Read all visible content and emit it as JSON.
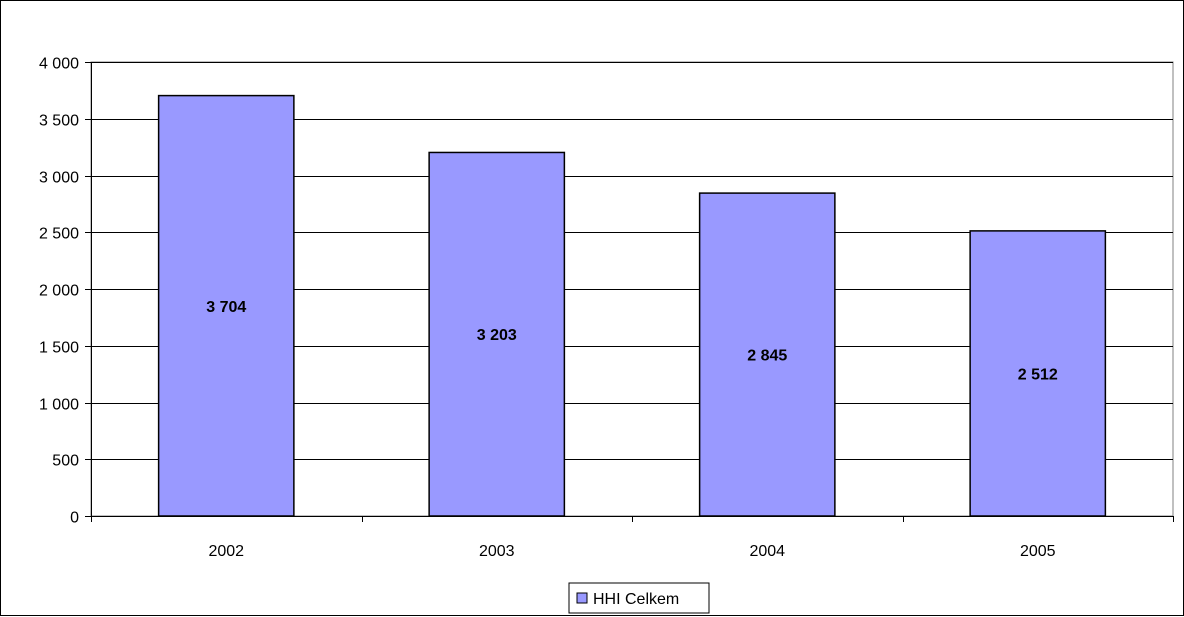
{
  "chart_data": {
    "type": "bar",
    "categories": [
      "2002",
      "2003",
      "2004",
      "2005"
    ],
    "series": [
      {
        "name": "HHI Celkem",
        "values": [
          3704,
          3203,
          2845,
          2512
        ]
      }
    ],
    "data_labels": [
      "3 704",
      "3 203",
      "2 845",
      "2 512"
    ],
    "y_ticks": [
      0,
      500,
      1000,
      1500,
      2000,
      2500,
      3000,
      3500,
      4000
    ],
    "y_tick_labels": [
      "0",
      "500",
      "1 000",
      "1 500",
      "2 000",
      "2 500",
      "3 000",
      "3 500",
      "4 000"
    ],
    "ylim": [
      0,
      4000
    ],
    "grid": true,
    "legend_position": "bottom",
    "title": "",
    "xlabel": "",
    "ylabel": "",
    "colors": {
      "bar_fill": "#9999ff",
      "bar_stroke": "#000000",
      "plot_background": "#ffffff",
      "gridline": "#000000"
    }
  }
}
